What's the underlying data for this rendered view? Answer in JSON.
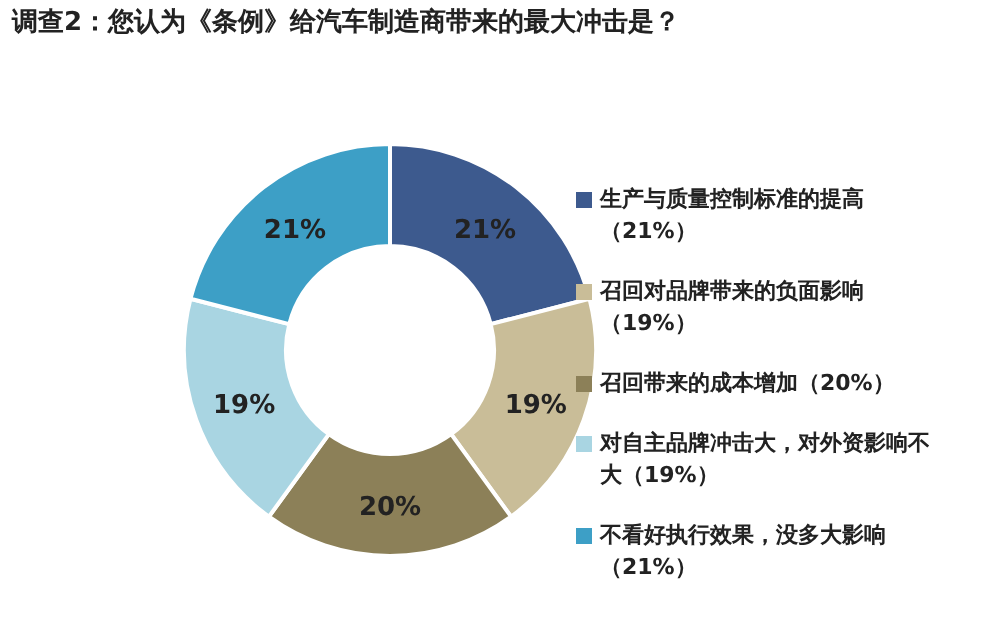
{
  "chart_data": {
    "type": "donut",
    "title": "调查2：您认为《条例》给汽车制造商带来的最大冲击是？",
    "categories": [
      "生产与质量控制标准的提高（21%）",
      "召回对品牌带来的负面影响（19%）",
      "召回带来的成本增加（20%）",
      "对自主品牌冲击大，对外资影响不大（19%）",
      "不看好执行效果，没多大影响（21%）"
    ],
    "values": [
      21,
      19,
      20,
      19,
      21
    ],
    "colors": [
      "#3d5a8e",
      "#c9bd98",
      "#8c8058",
      "#a9d5e2",
      "#3d9fc6"
    ],
    "value_labels": [
      "21%",
      "19%",
      "20%",
      "19%",
      "21%"
    ],
    "legend": "right"
  }
}
